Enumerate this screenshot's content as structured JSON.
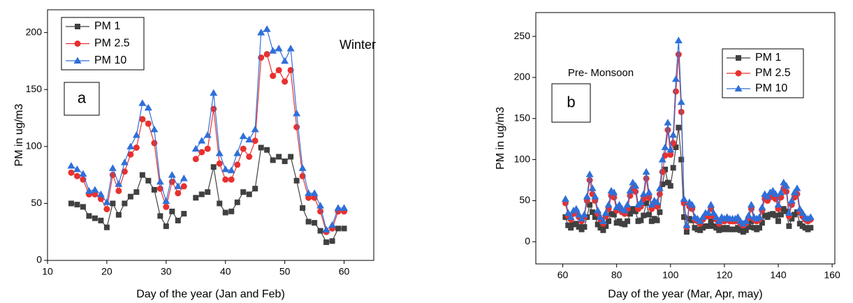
{
  "chart_data": [
    {
      "type": "line",
      "panel_label": "a",
      "annotation": "Winter",
      "xlabel": "Day of the year (Jan and Feb)",
      "ylabel": "PM in ug/m3",
      "xlim": [
        10,
        65
      ],
      "ylim": [
        0,
        220
      ],
      "xticks": [
        10,
        20,
        30,
        40,
        50,
        60
      ],
      "yticks": [
        0,
        50,
        100,
        150,
        200
      ],
      "legend": "upper left",
      "x": [
        14,
        15,
        16,
        17,
        18,
        19,
        20,
        21,
        22,
        23,
        24,
        25,
        26,
        27,
        28,
        29,
        30,
        31,
        32,
        33,
        34,
        35,
        36,
        37,
        38,
        39,
        40,
        41,
        42,
        43,
        44,
        45,
        46,
        47,
        48,
        49,
        50,
        51,
        52,
        53,
        54,
        55,
        56,
        57,
        58,
        59,
        60
      ],
      "series": [
        {
          "name": "PM 1",
          "color": "#404040",
          "marker": "square",
          "values": [
            50,
            49,
            47,
            39,
            37,
            35,
            29,
            50,
            40,
            50,
            56,
            60,
            75,
            70,
            62,
            39,
            30,
            43,
            35,
            41,
            null,
            55,
            58,
            60,
            82,
            50,
            42,
            43,
            51,
            60,
            58,
            63,
            99,
            97,
            88,
            91,
            87,
            91,
            70,
            46,
            34,
            33,
            26,
            16,
            17,
            28,
            28
          ]
        },
        {
          "name": "PM 2.5",
          "color": "#e8312f",
          "marker": "circle",
          "values": [
            77,
            74,
            71,
            58,
            58,
            54,
            45,
            75,
            61,
            78,
            93,
            99,
            124,
            120,
            103,
            63,
            47,
            69,
            59,
            65,
            null,
            89,
            95,
            98,
            133,
            85,
            71,
            71,
            84,
            98,
            91,
            105,
            178,
            181,
            162,
            167,
            157,
            167,
            117,
            74,
            55,
            55,
            43,
            25,
            28,
            43,
            43
          ]
        },
        {
          "name": "PM 10",
          "color": "#2f6fd8",
          "marker": "triangle",
          "values": [
            83,
            80,
            76,
            61,
            62,
            58,
            51,
            81,
            67,
            86,
            100,
            110,
            138,
            134,
            115,
            69,
            52,
            75,
            65,
            72,
            null,
            98,
            105,
            110,
            147,
            94,
            80,
            79,
            94,
            109,
            106,
            115,
            200,
            203,
            184,
            186,
            175,
            186,
            129,
            81,
            59,
            59,
            48,
            27,
            31,
            46,
            46
          ]
        }
      ]
    },
    {
      "type": "line",
      "panel_label": "b",
      "annotation": "Pre- Monsoon",
      "xlabel": "Day of the year (Mar, Apr, may)",
      "ylabel": "PM in ug/m3",
      "xlim": [
        50,
        161
      ],
      "ylim": [
        -27,
        279
      ],
      "xticks": [
        60,
        80,
        100,
        120,
        140,
        160
      ],
      "yticks": [
        0,
        50,
        100,
        150,
        200,
        250
      ],
      "legend": "upper right",
      "x": [
        61,
        62,
        63,
        64,
        65,
        66,
        67,
        68,
        69,
        70,
        71,
        72,
        73,
        74,
        75,
        76,
        77,
        78,
        79,
        80,
        81,
        82,
        83,
        84,
        85,
        86,
        87,
        88,
        89,
        90,
        91,
        92,
        93,
        94,
        95,
        96,
        97,
        98,
        99,
        100,
        101,
        102,
        103,
        104,
        105,
        106,
        107,
        108,
        109,
        110,
        111,
        112,
        113,
        114,
        115,
        116,
        117,
        118,
        119,
        120,
        121,
        122,
        123,
        124,
        125,
        126,
        127,
        128,
        129,
        130,
        131,
        132,
        133,
        134,
        135,
        136,
        137,
        138,
        139,
        140,
        141,
        142,
        143,
        144,
        145,
        146,
        147,
        148,
        149,
        150,
        151,
        152
      ],
      "series": [
        {
          "name": "PM 1",
          "color": "#404040",
          "marker": "square",
          "values": [
            30,
            20,
            17,
            21,
            22,
            18,
            15,
            18,
            30,
            45,
            36,
            30,
            21,
            17,
            14,
            19,
            25,
            34,
            33,
            23,
            25,
            22,
            21,
            25,
            34,
            40,
            37,
            25,
            26,
            32,
            47,
            33,
            25,
            28,
            26,
            36,
            70,
            88,
            72,
            68,
            90,
            115,
            139,
            100,
            30,
            12,
            28,
            26,
            17,
            15,
            14,
            17,
            19,
            19,
            25,
            19,
            17,
            14,
            17,
            15,
            17,
            15,
            15,
            15,
            17,
            14,
            12,
            14,
            18,
            25,
            17,
            15,
            17,
            23,
            32,
            30,
            33,
            34,
            32,
            25,
            33,
            40,
            37,
            19,
            28,
            33,
            36,
            22,
            19,
            17,
            15,
            17
          ]
        },
        {
          "name": "PM 2.5",
          "color": "#e8312f",
          "marker": "circle",
          "values": [
            47,
            31,
            27,
            34,
            36,
            30,
            25,
            30,
            50,
            75,
            58,
            50,
            34,
            27,
            22,
            31,
            40,
            56,
            54,
            38,
            40,
            36,
            34,
            40,
            56,
            65,
            61,
            40,
            43,
            52,
            77,
            54,
            40,
            45,
            43,
            58,
            85,
            105,
            136,
            106,
            120,
            183,
            228,
            158,
            47,
            18,
            43,
            40,
            27,
            25,
            22,
            27,
            31,
            31,
            40,
            31,
            27,
            22,
            27,
            25,
            27,
            25,
            25,
            25,
            27,
            22,
            20,
            22,
            29,
            40,
            27,
            25,
            27,
            38,
            52,
            50,
            54,
            56,
            52,
            40,
            54,
            65,
            61,
            31,
            45,
            54,
            58,
            36,
            31,
            27,
            25,
            27
          ]
        },
        {
          "name": "PM 10",
          "color": "#2f6fd8",
          "marker": "triangle",
          "values": [
            52,
            35,
            30,
            38,
            40,
            33,
            28,
            33,
            55,
            82,
            65,
            55,
            38,
            30,
            25,
            35,
            45,
            62,
            60,
            42,
            45,
            40,
            38,
            45,
            62,
            72,
            68,
            45,
            48,
            58,
            85,
            60,
            45,
            50,
            48,
            65,
            100,
            115,
            145,
            112,
            130,
            198,
            245,
            170,
            52,
            20,
            48,
            45,
            30,
            28,
            25,
            30,
            35,
            35,
            45,
            35,
            30,
            25,
            30,
            28,
            30,
            28,
            28,
            28,
            30,
            25,
            22,
            25,
            32,
            45,
            30,
            28,
            30,
            42,
            58,
            55,
            60,
            62,
            58,
            45,
            60,
            72,
            68,
            35,
            50,
            60,
            65,
            40,
            35,
            30,
            28,
            30
          ]
        }
      ]
    }
  ]
}
